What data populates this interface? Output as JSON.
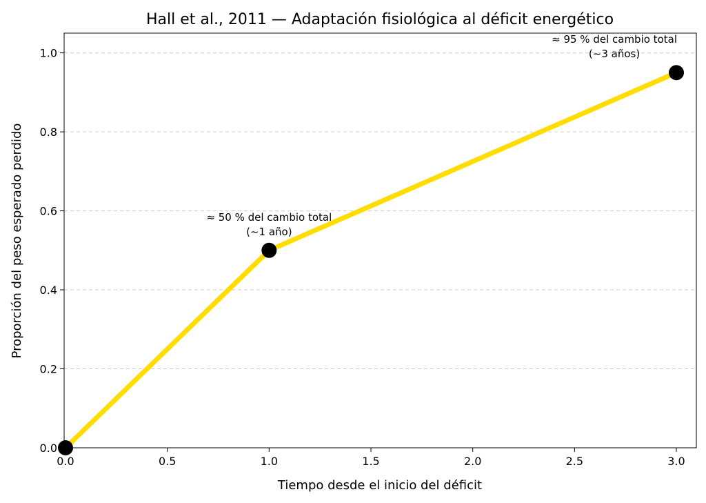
{
  "chart_data": {
    "type": "line",
    "title": "Hall et al., 2011 — Adaptación fisiológica al déficit energético",
    "xlabel": "Tiempo desde el inicio del déficit",
    "ylabel": "Proporción del peso esperado perdido",
    "xlim": [
      0.0,
      3.1
    ],
    "ylim": [
      0.0,
      1.05
    ],
    "xticks": [
      0.0,
      0.5,
      1.0,
      1.5,
      2.0,
      2.5,
      3.0
    ],
    "xtick_labels": [
      "0.0",
      "0.5",
      "1.0",
      "1.5",
      "2.0",
      "2.5",
      "3.0"
    ],
    "yticks": [
      0.0,
      0.2,
      0.4,
      0.6,
      0.8,
      1.0
    ],
    "ytick_labels": [
      "0.0",
      "0.2",
      "0.4",
      "0.6",
      "0.8",
      "1.0"
    ],
    "grid": "horizontal-dashed",
    "line_color": "#FFDD00",
    "marker_color": "#000000",
    "series": [
      {
        "x": [
          0.0,
          1.0,
          3.0
        ],
        "y": [
          0.0,
          0.5,
          0.95
        ]
      }
    ],
    "annotations": [
      {
        "x": 1.0,
        "y": 0.5,
        "lines": [
          "≈ 50 % del cambio total",
          "(~1 año)"
        ]
      },
      {
        "x": 3.0,
        "y": 0.95,
        "lines": [
          "≈ 95 % del cambio total",
          "(~3 años)"
        ]
      }
    ]
  }
}
